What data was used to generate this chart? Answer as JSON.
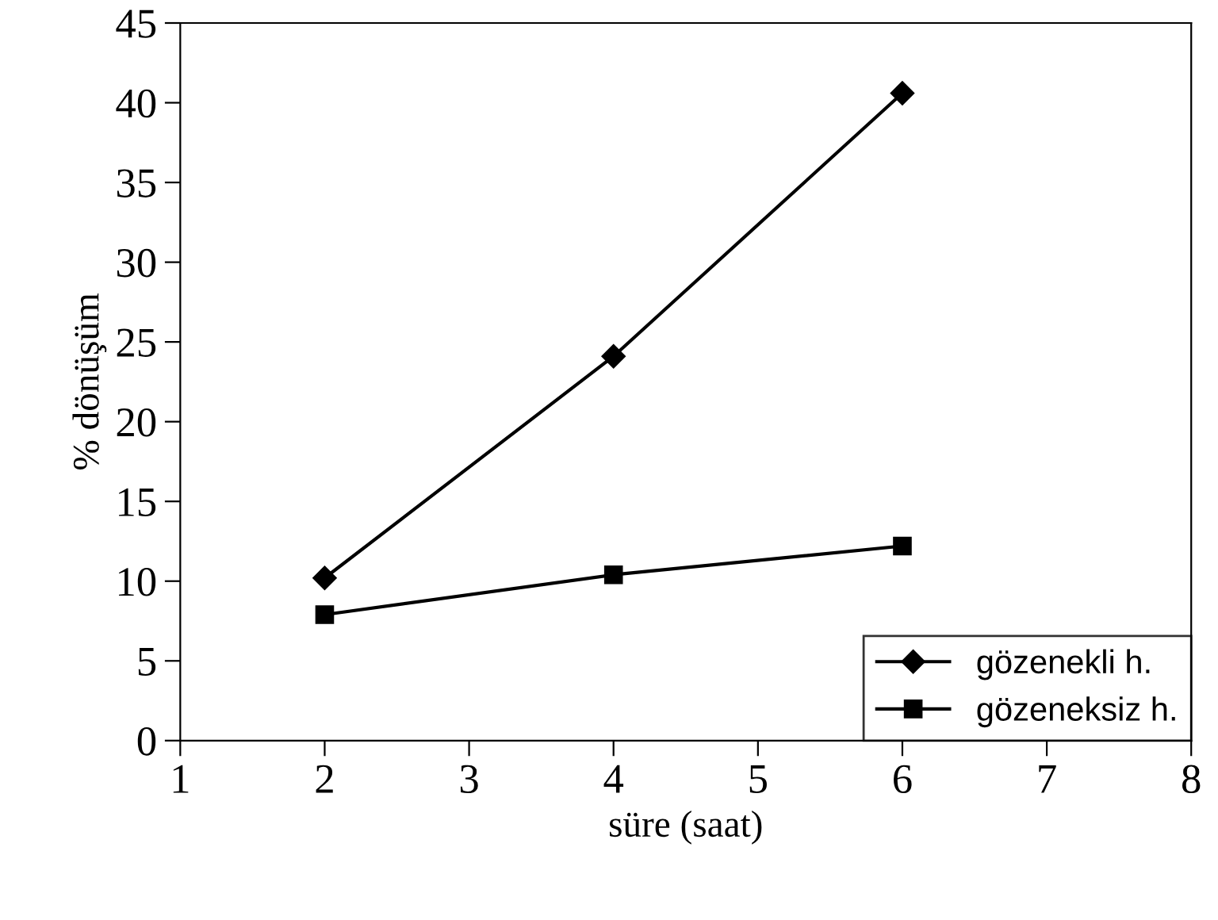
{
  "chart_data": {
    "type": "line",
    "xlabel": "süre (saat)",
    "ylabel": "% dönüşüm",
    "x": [
      2,
      4,
      6
    ],
    "series": [
      {
        "name": "gözenekli h.",
        "color": "#000000",
        "values": [
          10.2,
          24.1,
          40.6
        ],
        "marker": "diamond"
      },
      {
        "name": "gözeneksiz h.",
        "color": "#000000",
        "values": [
          7.9,
          10.4,
          12.2
        ],
        "marker": "square"
      }
    ],
    "xlim": [
      1,
      8
    ],
    "xticks": [
      1,
      2,
      3,
      4,
      5,
      6,
      7,
      8
    ],
    "ylim": [
      0,
      45
    ],
    "yticks": [
      0,
      5,
      10,
      15,
      20,
      25,
      30,
      35,
      40,
      45
    ],
    "grid": false,
    "legend": "bottom right",
    "line_style": "solid"
  }
}
